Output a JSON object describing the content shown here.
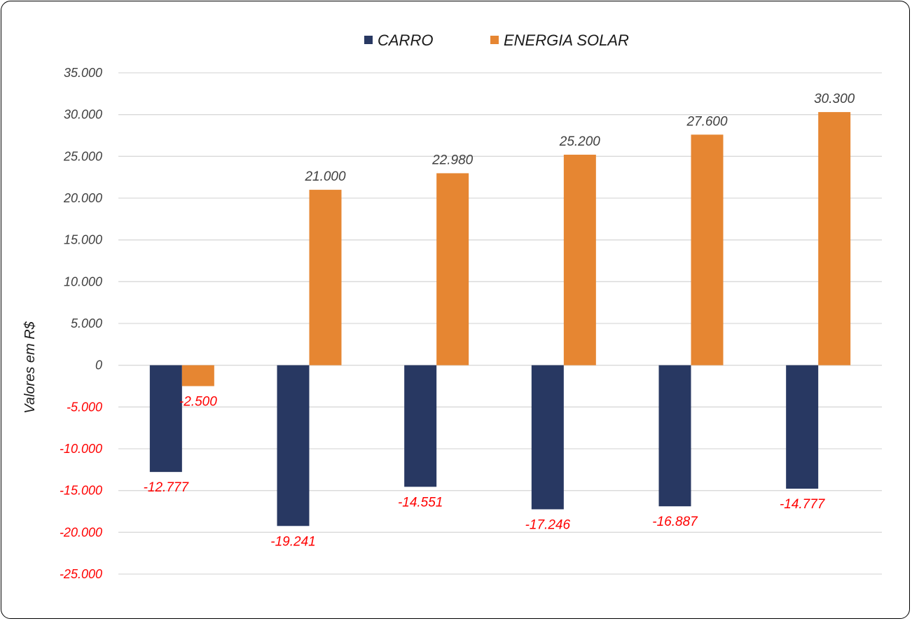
{
  "chart_data": {
    "type": "bar",
    "title": "",
    "xlabel": "",
    "ylabel": "Valores em R$",
    "ylim": [
      -25000,
      35000
    ],
    "yticks": [
      35000,
      30000,
      25000,
      20000,
      15000,
      10000,
      5000,
      0,
      -5000,
      -10000,
      -15000,
      -20000,
      -25000
    ],
    "ytick_labels": [
      "35.000",
      "30.000",
      "25.000",
      "20.000",
      "15.000",
      "10.000",
      "5.000",
      "0",
      "-5.000",
      "-10.000",
      "-15.000",
      "-20.000",
      "-25.000"
    ],
    "categories": [
      "",
      "",
      "",
      "",
      "",
      ""
    ],
    "grid": true,
    "legend_position": "top-center",
    "series": [
      {
        "name": "CARRO",
        "color": "#283862",
        "values": [
          -12777,
          -19241,
          -14551,
          -17246,
          -16887,
          -14777
        ],
        "labels": [
          "-12.777",
          "-19.241",
          "-14.551",
          "-17.246",
          "-16.887",
          "-14.777"
        ]
      },
      {
        "name": "ENERGIA SOLAR",
        "color": "#E68632",
        "values": [
          -2500,
          21000,
          22980,
          25200,
          27600,
          30300
        ],
        "labels": [
          "-2.500",
          "21.000",
          "22.980",
          "25.200",
          "27.600",
          "30.300"
        ]
      }
    ],
    "colors": {
      "positive_text": "#404040",
      "negative_text": "#FF0000",
      "grid": "#D9D9D9"
    }
  }
}
